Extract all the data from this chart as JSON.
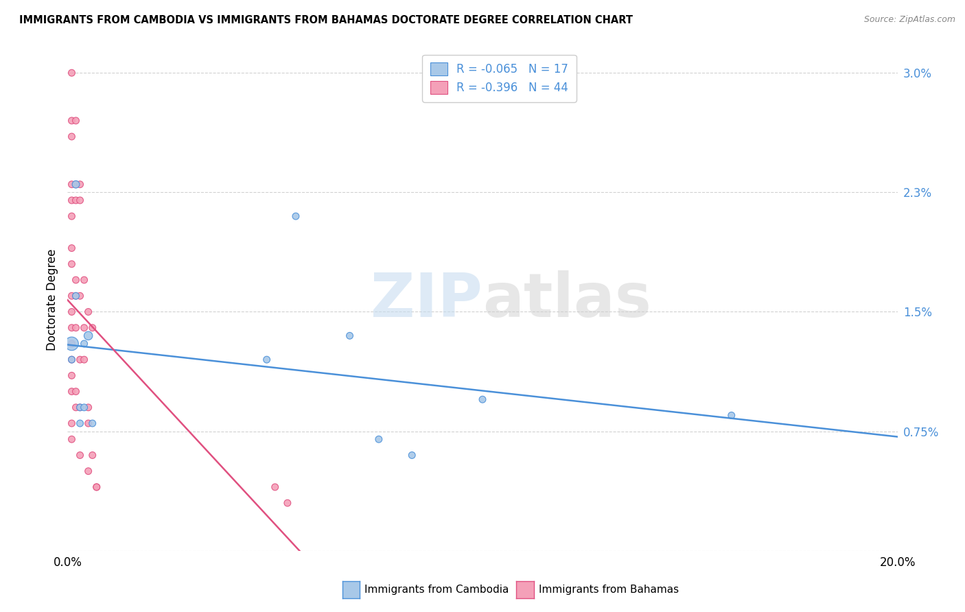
{
  "title": "IMMIGRANTS FROM CAMBODIA VS IMMIGRANTS FROM BAHAMAS DOCTORATE DEGREE CORRELATION CHART",
  "source": "Source: ZipAtlas.com",
  "ylabel": "Doctorate Degree",
  "xlim": [
    0.0,
    0.2
  ],
  "ylim": [
    0.0,
    0.0315
  ],
  "ytick_vals": [
    0.0,
    0.0075,
    0.015,
    0.0225,
    0.03
  ],
  "ytick_labels": [
    "",
    "0.75%",
    "1.5%",
    "2.3%",
    "3.0%"
  ],
  "xtick_vals": [
    0.0,
    0.05,
    0.1,
    0.15,
    0.2
  ],
  "xtick_labels": [
    "0.0%",
    "",
    "",
    "",
    "20.0%"
  ],
  "legend_r1": "-0.065",
  "legend_n1": "17",
  "legend_r2": "-0.396",
  "legend_n2": "44",
  "color_cambodia": "#a8c8e8",
  "color_bahamas": "#f4a0b8",
  "line_color_cambodia": "#4a90d9",
  "line_color_bahamas": "#e05080",
  "background_color": "#ffffff",
  "watermark_line1": "ZIP",
  "watermark_line2": "atlas",
  "cambodia_x": [
    0.001,
    0.001,
    0.002,
    0.003,
    0.004,
    0.004,
    0.005,
    0.006,
    0.048,
    0.055,
    0.068,
    0.075,
    0.083,
    0.1,
    0.16,
    0.002,
    0.003
  ],
  "cambodia_y": [
    0.013,
    0.012,
    0.016,
    0.009,
    0.013,
    0.009,
    0.0135,
    0.008,
    0.012,
    0.021,
    0.0135,
    0.007,
    0.006,
    0.0095,
    0.0085,
    0.023,
    0.008
  ],
  "cambodia_size": [
    200,
    50,
    50,
    50,
    50,
    50,
    80,
    50,
    50,
    50,
    50,
    50,
    50,
    50,
    50,
    60,
    50
  ],
  "bahamas_x": [
    0.001,
    0.001,
    0.001,
    0.001,
    0.001,
    0.001,
    0.001,
    0.001,
    0.001,
    0.001,
    0.001,
    0.001,
    0.001,
    0.001,
    0.001,
    0.002,
    0.002,
    0.002,
    0.002,
    0.002,
    0.002,
    0.002,
    0.003,
    0.003,
    0.003,
    0.003,
    0.003,
    0.003,
    0.004,
    0.004,
    0.004,
    0.005,
    0.005,
    0.005,
    0.005,
    0.006,
    0.006,
    0.007,
    0.007,
    0.05,
    0.053,
    0.001,
    0.001,
    0.002
  ],
  "bahamas_y": [
    0.03,
    0.026,
    0.023,
    0.022,
    0.021,
    0.018,
    0.016,
    0.015,
    0.014,
    0.013,
    0.012,
    0.011,
    0.01,
    0.008,
    0.007,
    0.023,
    0.022,
    0.017,
    0.016,
    0.014,
    0.01,
    0.009,
    0.023,
    0.022,
    0.016,
    0.012,
    0.009,
    0.006,
    0.017,
    0.014,
    0.012,
    0.015,
    0.009,
    0.008,
    0.005,
    0.014,
    0.006,
    0.004,
    0.004,
    0.004,
    0.003,
    0.027,
    0.019,
    0.027
  ],
  "bahamas_size": [
    50,
    50,
    50,
    50,
    50,
    50,
    50,
    50,
    50,
    50,
    50,
    50,
    50,
    50,
    50,
    50,
    50,
    50,
    50,
    50,
    50,
    50,
    50,
    50,
    50,
    50,
    50,
    50,
    50,
    50,
    50,
    50,
    50,
    50,
    50,
    50,
    50,
    50,
    50,
    50,
    50,
    50,
    50,
    50
  ]
}
